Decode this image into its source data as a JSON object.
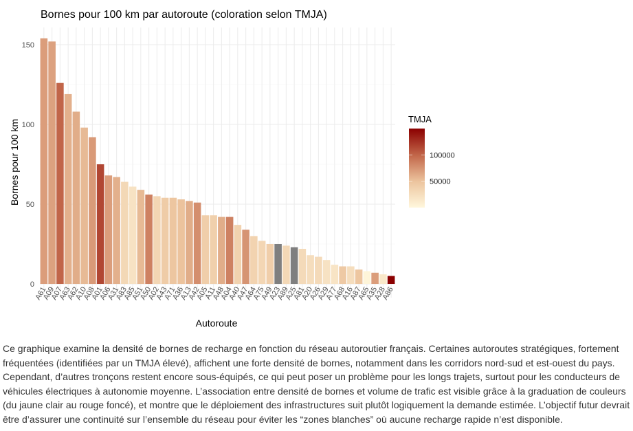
{
  "chart_data": {
    "type": "bar",
    "title": "Bornes pour 100 km par autoroute (coloration selon TMJA)",
    "xlabel": "Autoroute",
    "ylabel": "Bornes pour 100 km",
    "ylim": [
      0,
      160
    ],
    "yticks": [
      0,
      50,
      100,
      150
    ],
    "grid": true,
    "categories": [
      "A61",
      "A09",
      "A07",
      "A63",
      "A62",
      "A10",
      "A08",
      "A01",
      "A06",
      "A31",
      "A83",
      "A85",
      "A51",
      "A50",
      "A02",
      "A43",
      "A71",
      "A36",
      "A13",
      "A42",
      "A05",
      "A11",
      "A48",
      "A04",
      "A40",
      "A47",
      "A64",
      "A75",
      "A49",
      "A23",
      "A89",
      "A25",
      "A81",
      "A20",
      "A26",
      "A29",
      "A77",
      "A68",
      "A16",
      "A87",
      "A65",
      "A35",
      "A28",
      "A86"
    ],
    "values": [
      154,
      152,
      126,
      119,
      108,
      98,
      92,
      75,
      68,
      67,
      64,
      61,
      59,
      56,
      55,
      54,
      54,
      53,
      52,
      51,
      43,
      43,
      42,
      42,
      37,
      34,
      30,
      27,
      25,
      25,
      24,
      23,
      22,
      18,
      17,
      15,
      12,
      11,
      11,
      9,
      8,
      7,
      6,
      5
    ],
    "tmja": [
      70000,
      68000,
      100000,
      60000,
      62000,
      55000,
      72000,
      115000,
      70000,
      60000,
      30000,
      20000,
      55000,
      85000,
      32000,
      42000,
      48000,
      50000,
      62000,
      78000,
      40000,
      38000,
      62000,
      85000,
      36000,
      75000,
      35000,
      32000,
      40000,
      null,
      30000,
      null,
      28000,
      25000,
      28000,
      20000,
      18000,
      45000,
      25000,
      48000,
      2000,
      70000,
      15000,
      150000
    ],
    "missing_color": "#7f7f7f",
    "legend": {
      "title": "TMJA",
      "position": "right",
      "range": [
        0,
        150000
      ],
      "ticks": [
        50000,
        100000
      ],
      "tick_labels": [
        "50000",
        "100000"
      ],
      "low_color": "#fff7dc",
      "high_color": "#8b0000"
    }
  },
  "caption": "Ce graphique examine la densité de bornes de recharge en fonction du réseau autoroutier français. Certaines autoroutes stratégiques, fortement fréquentées (identifiées par un TMJA élevé), affichent une forte densité de bornes, notamment dans les corridors nord-sud et est-ouest du pays. Cependant, d’autres tronçons restent encore sous-équipés, ce qui peut poser un problème pour les longs trajets, surtout pour les conducteurs de véhicules électriques à autonomie moyenne. L’association entre densité de bornes et volume de trafic est visible grâce à la graduation de couleurs (du jaune clair au rouge foncé), et montre que le déploiement des infrastructures suit plutôt logiquement la demande estimée. L’objectif futur devrait être d’assurer une continuité sur l’ensemble du réseau pour éviter les “zones blanches” où aucune recharge rapide n’est disponible."
}
